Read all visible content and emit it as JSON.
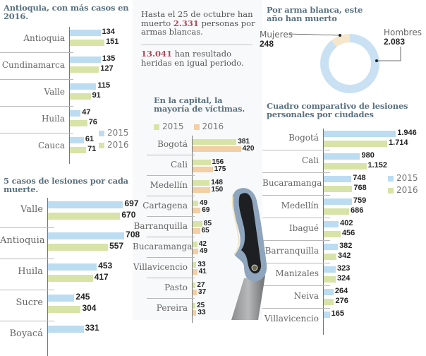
{
  "colors": {
    "blue_2015": "#bcdcf2",
    "green_2016": "#d8e3a8",
    "orange_2016": "#f2cfa4",
    "title": "#5a7280",
    "highlight": "#b5485a"
  },
  "intro": {
    "line1_pre": "Hasta el 25 de octubre han muerto ",
    "deaths": "2.331",
    "line1_post": " personas por armas blancas.",
    "injured": "13.041",
    "line2_post": " han resultado heridas en igual periodo."
  },
  "chart_data": [
    {
      "id": "departments-deaths",
      "type": "bar",
      "orientation": "horizontal",
      "title": "Antioquia, con más casos en 2016.",
      "categories": [
        "Antioquia",
        "Cundinamarca",
        "Valle",
        "Huila",
        "Cauca"
      ],
      "series": [
        {
          "name": "2015",
          "color": "#bcdcf2",
          "values": [
            134,
            135,
            115,
            47,
            61
          ]
        },
        {
          "name": "2016",
          "color": "#d8e3a8",
          "values": [
            151,
            127,
            91,
            76,
            71
          ]
        }
      ],
      "legend": [
        "2015",
        "2016"
      ],
      "legend_position": "bottom-right",
      "xlim": [
        0,
        160
      ]
    },
    {
      "id": "departments-injuries",
      "type": "bar",
      "orientation": "horizontal",
      "title": "5 casos de lesiones por cada muerte.",
      "categories": [
        "Valle",
        "Antioquia",
        "Huila",
        "Sucre",
        "Boyacá"
      ],
      "series": [
        {
          "name": "2015",
          "color": "#bcdcf2",
          "values": [
            697,
            708,
            453,
            245,
            331
          ]
        },
        {
          "name": "2016",
          "color": "#d8e3a8",
          "values": [
            670,
            557,
            417,
            304,
            null
          ]
        }
      ],
      "xlim": [
        0,
        720
      ]
    },
    {
      "id": "donut-gender",
      "type": "pie",
      "title": "Por arma blanca, este año han muerto",
      "labels": [
        "Hombres",
        "Mujeres"
      ],
      "values": [
        2083,
        248
      ],
      "value_labels": [
        "2.083",
        "248"
      ],
      "colors": [
        "#c9e1f3",
        "#f6e6cc"
      ]
    },
    {
      "id": "capital-victims",
      "type": "bar",
      "orientation": "horizontal",
      "title": "En la capital, la mayoría de víctimas.",
      "categories": [
        "Bogotá",
        "Cali",
        "Medellín",
        "Cartagena",
        "Barranquilla",
        "Bucaramanga",
        "Villavicencio",
        "Pasto",
        "Pereira"
      ],
      "series": [
        {
          "name": "2015",
          "color": "#d8e3a8",
          "values": [
            381,
            156,
            148,
            49,
            85,
            42,
            33,
            27,
            25
          ]
        },
        {
          "name": "2016",
          "color": "#f2cfa4",
          "values": [
            420,
            175,
            150,
            69,
            65,
            49,
            41,
            37,
            33
          ]
        }
      ],
      "legend": [
        "2015",
        "2016"
      ],
      "legend_position": "top",
      "xlim": [
        0,
        440
      ]
    },
    {
      "id": "cities-injuries",
      "type": "bar",
      "orientation": "horizontal",
      "title": "Cuadro comparativo de lesiones personales por ciudades",
      "categories": [
        "Bogotá",
        "Cali",
        "Bucaramanga",
        "Medellín",
        "Ibagué",
        "Barranquilla",
        "Manizales",
        "Neiva",
        "Villavicencio"
      ],
      "series": [
        {
          "name": "2015",
          "color": "#bcdcf2",
          "values": [
            1946,
            980,
            748,
            759,
            402,
            382,
            323,
            264,
            165
          ]
        },
        {
          "name": "2016",
          "color": "#d8e3a8",
          "values": [
            1714,
            1152,
            768,
            686,
            456,
            342,
            324,
            276,
            null
          ]
        }
      ],
      "value_labels": {
        "2015": [
          "1.946",
          "980",
          "748",
          "759",
          "402",
          "382",
          "323",
          "264",
          "165"
        ],
        "2016": [
          "1.714",
          "1.152",
          "768",
          "686",
          "456",
          "342",
          "324",
          "276",
          ""
        ]
      },
      "legend": [
        "2015",
        "2016"
      ],
      "legend_position": "right",
      "xlim": [
        0,
        1980
      ]
    }
  ]
}
